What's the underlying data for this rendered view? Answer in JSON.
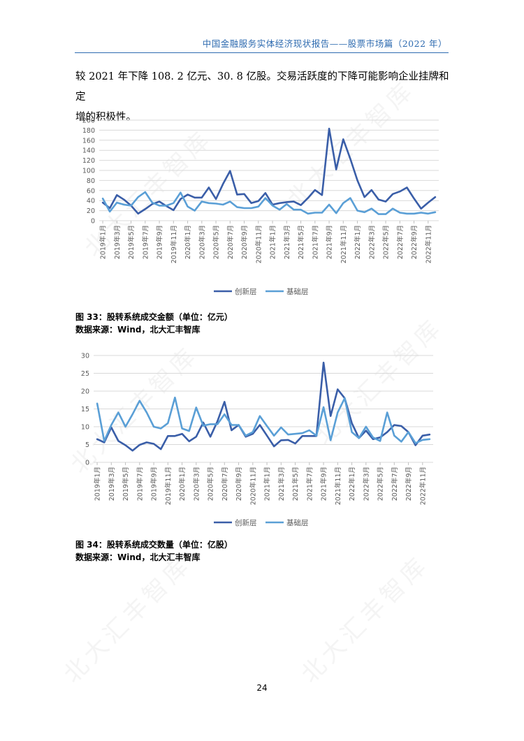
{
  "header": {
    "title": "中国金融服务实体经济现状报告——股票市场篇（2022 年）"
  },
  "body_text": {
    "line1": "较 2021 年下降 108. 2 亿元、30. 8 亿股。交易活跃度的下降可能影响企业挂牌和定",
    "line2": "增的积极性。"
  },
  "colors": {
    "series1": "#3a5ea8",
    "series2": "#5a9fd6",
    "header": "#2e6bb0",
    "grid": "#d9d9d9"
  },
  "watermark": "北大汇丰智库",
  "chart_data": [
    {
      "type": "line",
      "ylim": [
        0,
        200
      ],
      "yticks": [
        "0",
        "20",
        "40",
        "60",
        "80",
        "100",
        "120",
        "140",
        "160",
        "180",
        "200"
      ],
      "xticks": [
        "2019年1月",
        "2019年3月",
        "2019年5月",
        "2019年7月",
        "2019年9月",
        "2019年11月",
        "2020年1月",
        "2020年3月",
        "2020年5月",
        "2020年7月",
        "2020年9月",
        "2020年11月",
        "2021年1月",
        "2021年3月",
        "2021年5月",
        "2021年7月",
        "2021年9月",
        "2021年11月",
        "2022年1月",
        "2022年3月",
        "2022年5月",
        "2022年7月",
        "2022年9月",
        "2022年11月"
      ],
      "grid": true,
      "legend_position": "bottom",
      "series": [
        {
          "name": "创新层",
          "values": [
            36,
            25,
            51,
            42,
            30,
            14,
            23,
            33,
            38,
            29,
            21,
            43,
            52,
            46,
            46,
            66,
            43,
            73,
            99,
            52,
            53,
            35,
            39,
            55,
            32,
            35,
            37,
            38,
            31,
            45,
            61,
            51,
            183,
            102,
            162,
            123,
            80,
            47,
            61,
            42,
            38,
            53,
            58,
            66,
            44,
            24,
            36,
            47
          ]
        },
        {
          "name": "基础层",
          "values": [
            44,
            18,
            36,
            32,
            30,
            47,
            57,
            36,
            30,
            30,
            35,
            56,
            28,
            20,
            38,
            35,
            34,
            32,
            38,
            27,
            25,
            25,
            28,
            45,
            30,
            22,
            33,
            22,
            22,
            14,
            16,
            16,
            32,
            15,
            35,
            45,
            20,
            17,
            24,
            13,
            13,
            24,
            16,
            14,
            14,
            16,
            14,
            17
          ]
        }
      ]
    },
    {
      "type": "line",
      "ylim": [
        0,
        30
      ],
      "yticks": [
        "0",
        "5",
        "10",
        "15",
        "20",
        "25",
        "30"
      ],
      "xticks": [
        "2019年1月",
        "2019年3月",
        "2019年5月",
        "2019年7月",
        "2019年9月",
        "2019年11月",
        "2020年1月",
        "2020年3月",
        "2020年5月",
        "2020年7月",
        "2020年9月",
        "2020年11月",
        "2021年1月",
        "2021年3月",
        "2021年5月",
        "2021年7月",
        "2021年9月",
        "2021年11月",
        "2022年1月",
        "2022年3月",
        "2022年5月",
        "2022年7月",
        "2022年9月",
        "2022年11月"
      ],
      "grid": true,
      "legend_position": "bottom",
      "series": [
        {
          "name": "创新层",
          "values": [
            6.5,
            5.6,
            9.8,
            6,
            4.8,
            3.3,
            4.9,
            5.6,
            5.2,
            3.7,
            7.4,
            7.4,
            8,
            5.9,
            7.2,
            11.2,
            7.2,
            11.5,
            17,
            9,
            10.5,
            7.2,
            8,
            10.5,
            7.5,
            4.5,
            6.2,
            6.3,
            5.3,
            7.4,
            7.4,
            7.4,
            28,
            13,
            20.5,
            18,
            11,
            6.8,
            8.9,
            6.5,
            7,
            8.5,
            10.5,
            10.2,
            8.5,
            4.8,
            7.5,
            7.8
          ]
        },
        {
          "name": "基础层",
          "values": [
            16.5,
            6,
            10.5,
            14,
            10,
            13.5,
            17.3,
            14,
            10,
            9.5,
            11,
            18.2,
            9.5,
            8.8,
            15.4,
            10.3,
            10.7,
            10.7,
            13.5,
            10.5,
            10.5,
            7.5,
            8.5,
            13,
            10.2,
            7.5,
            9.8,
            7.8,
            8,
            8.2,
            9,
            7.5,
            15.5,
            6.2,
            14,
            18,
            8.5,
            6.8,
            10,
            7,
            6,
            14,
            7.5,
            5.8,
            8.5,
            5.4,
            6.3,
            6.5
          ]
        }
      ]
    }
  ],
  "captions": {
    "chart1_title": "图 33：股转系统成交金额（单位：亿元）",
    "chart1_source": "数据来源：Wind，北大汇丰智库",
    "chart2_title": "图 34：股转系统成交数量（单位：亿股）",
    "chart2_source": "数据来源：Wind，北大汇丰智库"
  },
  "page_number": "24"
}
